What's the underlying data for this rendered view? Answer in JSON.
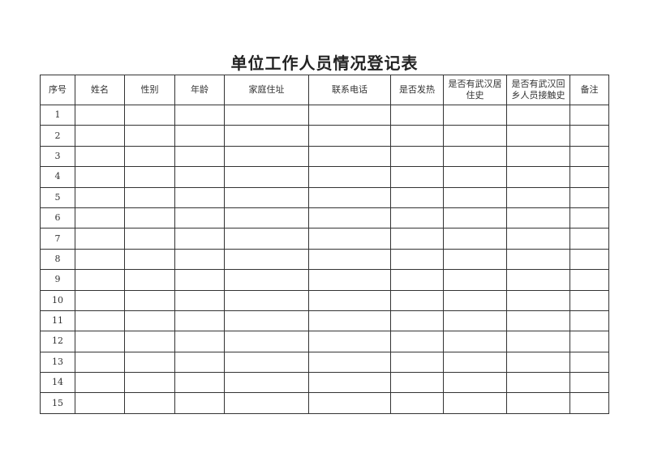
{
  "title": "单位工作人员情况登记表",
  "headers": [
    "序号",
    "姓名",
    "性别",
    "年龄",
    "家庭住址",
    "联系电话",
    "是否发热",
    "是否有武汉居住史",
    "是否有武汉回乡人员接触史",
    "备注"
  ],
  "rows": [
    "1",
    "2",
    "3",
    "4",
    "5",
    "6",
    "7",
    "8",
    "9",
    "10",
    "11",
    "12",
    "13",
    "14",
    "15"
  ]
}
